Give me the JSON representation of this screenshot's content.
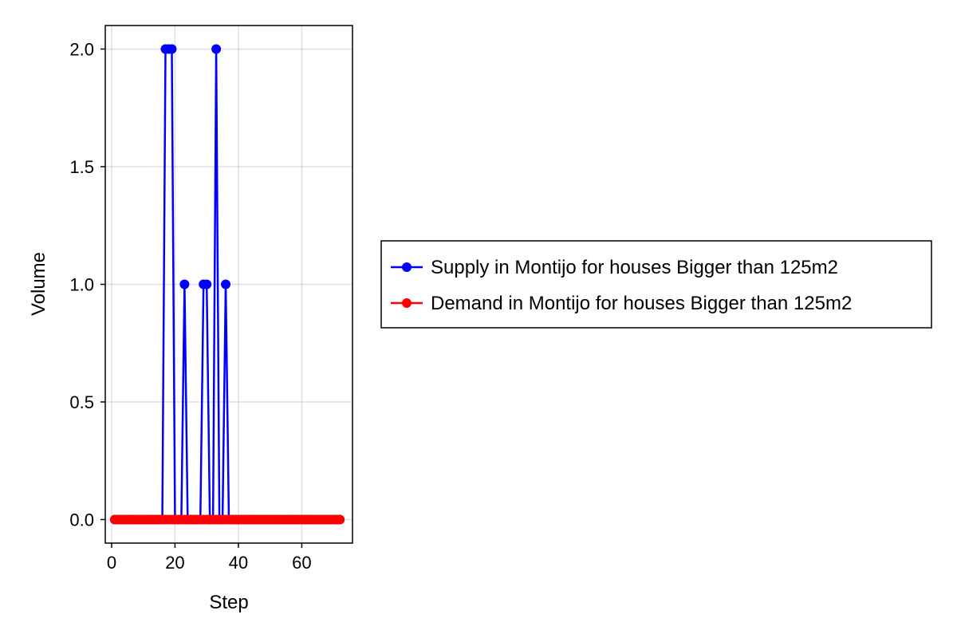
{
  "chart_data": {
    "type": "line",
    "title": "",
    "xlabel": "Step",
    "ylabel": "Volume",
    "xlim": [
      -2,
      76
    ],
    "ylim": [
      -0.1,
      2.1
    ],
    "xticks": [
      0,
      20,
      40,
      60
    ],
    "yticks": [
      0.0,
      0.5,
      1.0,
      1.5,
      2.0
    ],
    "xtick_labels": [
      "0",
      "20",
      "40",
      "60"
    ],
    "ytick_labels": [
      "0.0",
      "0.5",
      "1.0",
      "1.5",
      "2.0"
    ],
    "grid": true,
    "legend_position": "right",
    "x": [
      1,
      2,
      3,
      4,
      5,
      6,
      7,
      8,
      9,
      10,
      11,
      12,
      13,
      14,
      15,
      16,
      17,
      18,
      19,
      20,
      21,
      22,
      23,
      24,
      25,
      26,
      27,
      28,
      29,
      30,
      31,
      32,
      33,
      34,
      35,
      36,
      37,
      38,
      39,
      40,
      41,
      42,
      43,
      44,
      45,
      46,
      47,
      48,
      49,
      50,
      51,
      52,
      53,
      54,
      55,
      56,
      57,
      58,
      59,
      60,
      61,
      62,
      63,
      64,
      65,
      66,
      67,
      68,
      69,
      70,
      71,
      72
    ],
    "series": [
      {
        "name": "Supply in Montijo for houses Bigger than 125m2",
        "color": "#0000ff",
        "values": [
          0,
          0,
          0,
          0,
          0,
          0,
          0,
          0,
          0,
          0,
          0,
          0,
          0,
          0,
          0,
          0,
          2,
          2,
          2,
          0,
          0,
          0,
          1,
          0,
          0,
          0,
          0,
          0,
          1,
          1,
          0,
          0,
          2,
          0,
          0,
          1,
          0,
          0,
          0,
          0,
          0,
          0,
          0,
          0,
          0,
          0,
          0,
          0,
          0,
          0,
          0,
          0,
          0,
          0,
          0,
          0,
          0,
          0,
          0,
          0,
          0,
          0,
          0,
          0,
          0,
          0,
          0,
          0,
          0,
          0,
          0,
          0
        ]
      },
      {
        "name": "Demand in Montijo for houses Bigger than 125m2",
        "color": "#ff0000",
        "values": [
          0,
          0,
          0,
          0,
          0,
          0,
          0,
          0,
          0,
          0,
          0,
          0,
          0,
          0,
          0,
          0,
          0,
          0,
          0,
          0,
          0,
          0,
          0,
          0,
          0,
          0,
          0,
          0,
          0,
          0,
          0,
          0,
          0,
          0,
          0,
          0,
          0,
          0,
          0,
          0,
          0,
          0,
          0,
          0,
          0,
          0,
          0,
          0,
          0,
          0,
          0,
          0,
          0,
          0,
          0,
          0,
          0,
          0,
          0,
          0,
          0,
          0,
          0,
          0,
          0,
          0,
          0,
          0,
          0,
          0,
          0,
          0
        ]
      }
    ]
  }
}
